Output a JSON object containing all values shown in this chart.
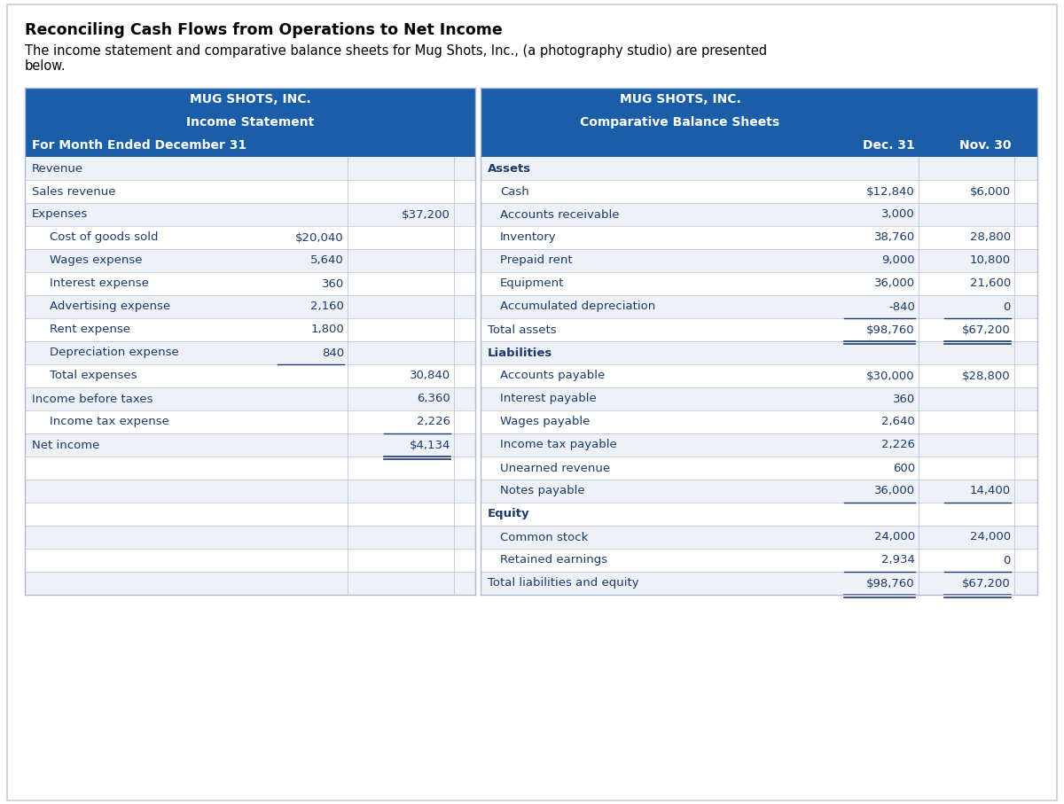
{
  "title": "Reconciling Cash Flows from Operations to Net Income",
  "subtitle_line1": "The income statement and comparative balance sheets for Mug Shots, Inc., (a photography studio) are presented",
  "subtitle_line2": "below.",
  "header_color": "#1a5ea8",
  "header_text_color": "#ffffff",
  "row_alt_color": "#eef2f8",
  "row_white_color": "#ffffff",
  "border_color": "#b0bcd0",
  "blue_text_color": "#1a3a6e",
  "left_table": {
    "header1": "MUG SHOTS, INC.",
    "header2": "Income Statement",
    "header3": "For Month Ended December 31",
    "rows": [
      {
        "label": "Revenue",
        "col1": "",
        "col2": "",
        "indent": 0,
        "bold": false
      },
      {
        "label": "Sales revenue",
        "col1": "",
        "col2": "",
        "indent": 0,
        "bold": false
      },
      {
        "label": "Expenses",
        "col1": "",
        "col2": "$37,200",
        "indent": 0,
        "bold": false
      },
      {
        "label": "Cost of goods sold",
        "col1": "$20,040",
        "col2": "",
        "indent": 1,
        "bold": false
      },
      {
        "label": "Wages expense",
        "col1": "5,640",
        "col2": "",
        "indent": 1,
        "bold": false
      },
      {
        "label": "Interest expense",
        "col1": "360",
        "col2": "",
        "indent": 1,
        "bold": false
      },
      {
        "label": "Advertising expense",
        "col1": "2,160",
        "col2": "",
        "indent": 1,
        "bold": false
      },
      {
        "label": "Rent expense",
        "col1": "1,800",
        "col2": "",
        "indent": 1,
        "bold": false
      },
      {
        "label": "Depreciation expense",
        "col1": "840",
        "col2": "",
        "indent": 1,
        "bold": false
      },
      {
        "label": "Total expenses",
        "col1": "",
        "col2": "30,840",
        "indent": 1,
        "bold": false
      },
      {
        "label": "Income before taxes",
        "col1": "",
        "col2": "6,360",
        "indent": 0,
        "bold": false
      },
      {
        "label": "Income tax expense",
        "col1": "",
        "col2": "2,226",
        "indent": 1,
        "bold": false
      },
      {
        "label": "Net income",
        "col1": "",
        "col2": "$4,134",
        "indent": 0,
        "bold": false
      },
      {
        "label": "",
        "col1": "",
        "col2": "",
        "indent": 0,
        "bold": false
      },
      {
        "label": "",
        "col1": "",
        "col2": "",
        "indent": 0,
        "bold": false
      },
      {
        "label": "",
        "col1": "",
        "col2": "",
        "indent": 0,
        "bold": false
      },
      {
        "label": "",
        "col1": "",
        "col2": "",
        "indent": 0,
        "bold": false
      },
      {
        "label": "",
        "col1": "",
        "col2": "",
        "indent": 0,
        "bold": false
      },
      {
        "label": "",
        "col1": "",
        "col2": "",
        "indent": 0,
        "bold": false
      }
    ]
  },
  "right_table": {
    "header1": "MUG SHOTS, INC.",
    "header2": "Comparative Balance Sheets",
    "header_col1": "Dec. 31",
    "header_col2": "Nov. 30",
    "rows": [
      {
        "label": "Assets",
        "col1": "",
        "col2": "",
        "indent": 0,
        "bold": true
      },
      {
        "label": "Cash",
        "col1": "$12,840",
        "col2": "$6,000",
        "indent": 1,
        "bold": false
      },
      {
        "label": "Accounts receivable",
        "col1": "3,000",
        "col2": "",
        "indent": 1,
        "bold": false
      },
      {
        "label": "Inventory",
        "col1": "38,760",
        "col2": "28,800",
        "indent": 1,
        "bold": false
      },
      {
        "label": "Prepaid rent",
        "col1": "9,000",
        "col2": "10,800",
        "indent": 1,
        "bold": false
      },
      {
        "label": "Equipment",
        "col1": "36,000",
        "col2": "21,600",
        "indent": 1,
        "bold": false
      },
      {
        "label": "Accumulated depreciation",
        "col1": "-840",
        "col2": "0",
        "indent": 1,
        "bold": false
      },
      {
        "label": "Total assets",
        "col1": "$98,760",
        "col2": "$67,200",
        "indent": 0,
        "bold": false
      },
      {
        "label": "Liabilities",
        "col1": "",
        "col2": "",
        "indent": 0,
        "bold": true
      },
      {
        "label": "Accounts payable",
        "col1": "$30,000",
        "col2": "$28,800",
        "indent": 1,
        "bold": false
      },
      {
        "label": "Interest payable",
        "col1": "360",
        "col2": "",
        "indent": 1,
        "bold": false
      },
      {
        "label": "Wages payable",
        "col1": "2,640",
        "col2": "",
        "indent": 1,
        "bold": false
      },
      {
        "label": "Income tax payable",
        "col1": "2,226",
        "col2": "",
        "indent": 1,
        "bold": false
      },
      {
        "label": "Unearned revenue",
        "col1": "600",
        "col2": "",
        "indent": 1,
        "bold": false
      },
      {
        "label": "Notes payable",
        "col1": "36,000",
        "col2": "14,400",
        "indent": 1,
        "bold": false
      },
      {
        "label": "Equity",
        "col1": "",
        "col2": "",
        "indent": 0,
        "bold": true
      },
      {
        "label": "Common stock",
        "col1": "24,000",
        "col2": "24,000",
        "indent": 1,
        "bold": false
      },
      {
        "label": "Retained earnings",
        "col1": "2,934",
        "col2": "0",
        "indent": 1,
        "bold": false
      },
      {
        "label": "Total liabilities and equity",
        "col1": "$98,760",
        "col2": "$67,200",
        "indent": 0,
        "bold": false
      }
    ]
  }
}
